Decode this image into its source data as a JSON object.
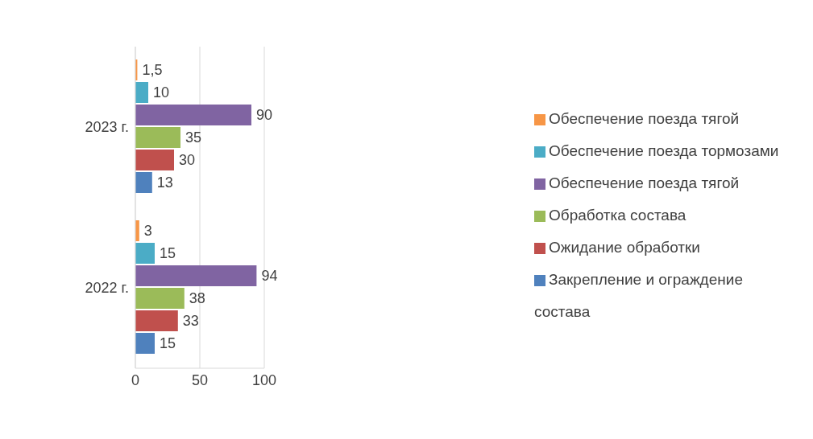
{
  "chart_data": {
    "type": "bar",
    "orientation": "horizontal",
    "categories": [
      "2023 г.",
      "2022 г."
    ],
    "series": [
      {
        "name": "Обеспечение поезда тягой",
        "color": "#f79646",
        "values": [
          1.5,
          3
        ],
        "value_labels": [
          "1,5",
          "3"
        ]
      },
      {
        "name": "Обеспечение поезда тормозами",
        "color": "#4bacc6",
        "values": [
          10,
          15
        ],
        "value_labels": [
          "10",
          "15"
        ]
      },
      {
        "name": "Обеспечение поезда тягой",
        "color": "#8064a2",
        "values": [
          90,
          94
        ],
        "value_labels": [
          "90",
          "94"
        ]
      },
      {
        "name": "Обработка состава",
        "color": "#9bbb59",
        "values": [
          35,
          38
        ],
        "value_labels": [
          "35",
          "38"
        ]
      },
      {
        "name": "Ожидание обработки",
        "color": "#c0504d",
        "values": [
          30,
          33
        ],
        "value_labels": [
          "30",
          "33"
        ]
      },
      {
        "name": "Закрепление и ограждение состава",
        "color": "#4f81bd",
        "values": [
          13,
          15
        ],
        "value_labels": [
          "13",
          "15"
        ]
      }
    ],
    "xlim": [
      0,
      100
    ],
    "xticks": [
      0,
      50,
      100
    ],
    "grid": "x",
    "legend": "right"
  }
}
